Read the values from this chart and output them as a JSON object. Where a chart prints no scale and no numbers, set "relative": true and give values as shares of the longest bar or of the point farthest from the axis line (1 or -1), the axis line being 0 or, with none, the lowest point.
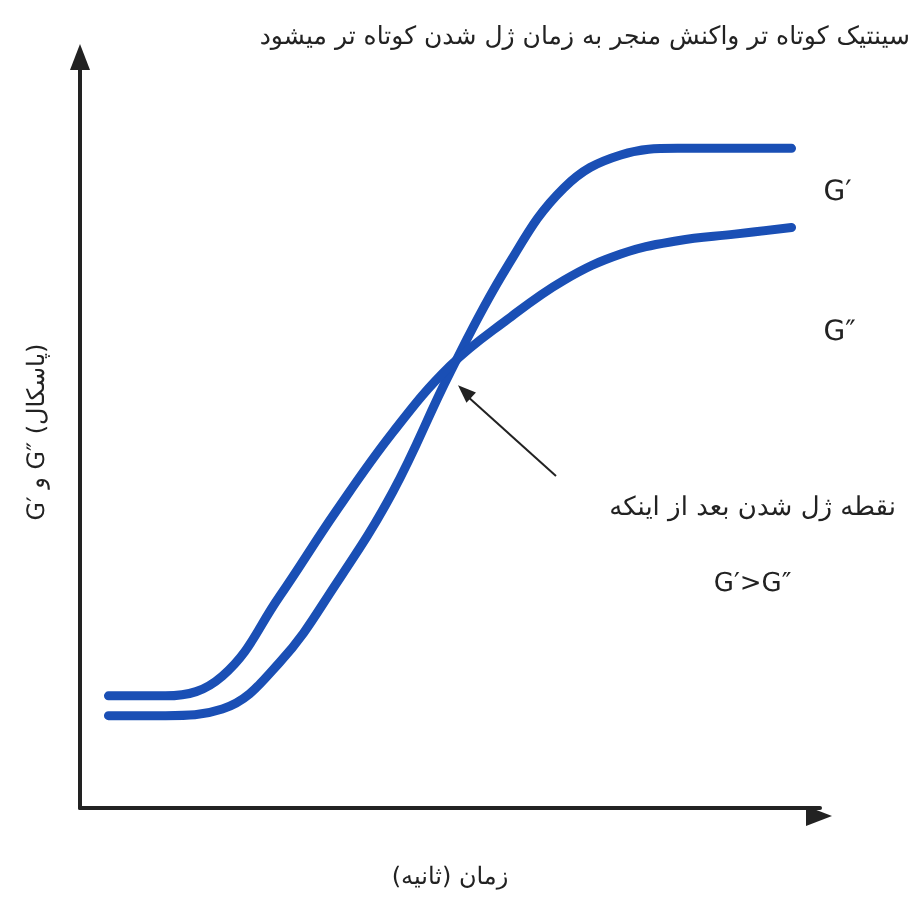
{
  "chart_data": {
    "type": "line",
    "relative": true,
    "title": "سینتیک کوتاه تر واکنش منجر به زمان ژل شدن کوتاه تر میشود",
    "xlabel": "زمان (ثانیه)",
    "ylabel": "G′ و G″ (پاسکال)",
    "categories": [
      null,
      null,
      null,
      null,
      null,
      null,
      null,
      null,
      null,
      null,
      null,
      null,
      null
    ],
    "series": [
      {
        "name": "G′",
        "color": "#1a4fb5",
        "values": [
          0.14,
          0.14,
          0.15,
          0.22,
          0.34,
          0.48,
          0.66,
          0.82,
          0.94,
          0.99,
          1,
          1,
          1
        ]
      },
      {
        "name": "G″",
        "color": "#1a4fb5",
        "values": [
          0.17,
          0.17,
          0.2,
          0.32,
          0.45,
          0.57,
          0.67,
          0.74,
          0.8,
          0.84,
          0.86,
          0.87,
          0.88
        ]
      }
    ],
    "annotations": [
      "نقطه ژل شدن بعد از اینکه\nG′>G″"
    ],
    "marker": "none",
    "line_style": "solid",
    "grid": false,
    "legend": false
  }
}
